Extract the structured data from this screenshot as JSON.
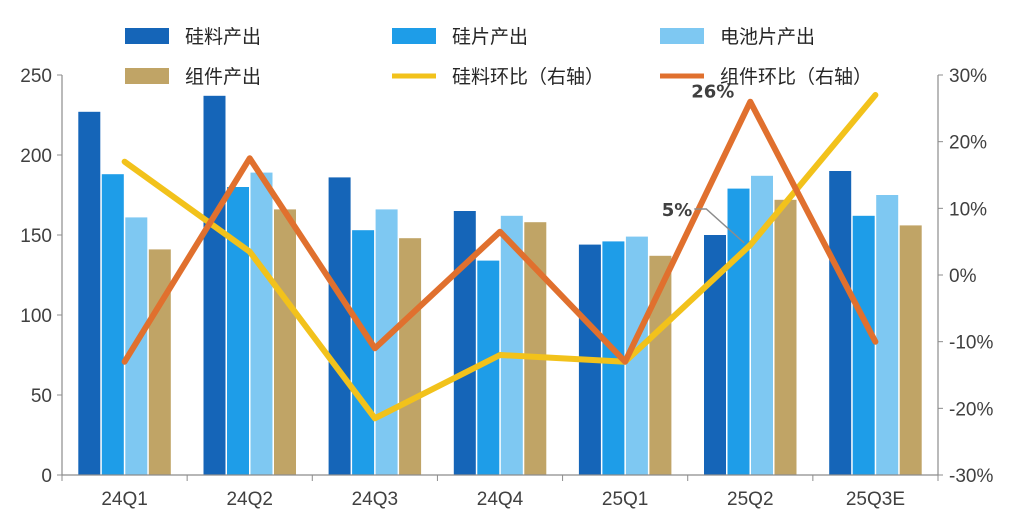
{
  "chart_data": {
    "type": "bar",
    "categories": [
      "24Q1",
      "24Q2",
      "24Q3",
      "24Q4",
      "25Q1",
      "25Q2",
      "25Q3E"
    ],
    "ylim": [
      0,
      250
    ],
    "y_ticks": [
      "0",
      "50",
      "100",
      "150",
      "200",
      "250"
    ],
    "y2lim": [
      -30,
      30
    ],
    "y2_ticks": [
      "-30%",
      "-20%",
      "-10%",
      "0%",
      "10%",
      "20%",
      "30%"
    ],
    "series": [
      {
        "name": "硅料产出",
        "kind": "bar",
        "axis": "left",
        "color": "#1565b8",
        "values": [
          227,
          237,
          186,
          165,
          144,
          150,
          190
        ]
      },
      {
        "name": "硅片产出",
        "kind": "bar",
        "axis": "left",
        "color": "#1e9de8",
        "values": [
          188,
          180,
          153,
          134,
          146,
          179,
          162
        ]
      },
      {
        "name": "电池片产出",
        "kind": "bar",
        "axis": "left",
        "color": "#7ec8f2",
        "values": [
          161,
          189,
          166,
          162,
          149,
          187,
          175
        ]
      },
      {
        "name": "组件产出",
        "kind": "bar",
        "axis": "left",
        "color": "#c0a466",
        "values": [
          141,
          166,
          148,
          158,
          137,
          172,
          156
        ]
      },
      {
        "name": "硅料环比（右轴）",
        "kind": "line",
        "axis": "right",
        "color": "#f2c21b",
        "values": [
          17,
          3.5,
          -21.5,
          -12,
          -13,
          4.5,
          27
        ]
      },
      {
        "name": "组件环比（右轴）",
        "kind": "line",
        "axis": "right",
        "color": "#e0702e",
        "values": [
          -13,
          17.5,
          -11,
          6.5,
          -13,
          26,
          -10
        ]
      }
    ],
    "annotations": [
      {
        "text": "26%",
        "series": "组件环比（右轴）",
        "category": "25Q2"
      },
      {
        "text": "5%",
        "series": "硅料环比（右轴）",
        "category": "25Q2"
      }
    ],
    "grid": false,
    "legend_position": "top"
  }
}
